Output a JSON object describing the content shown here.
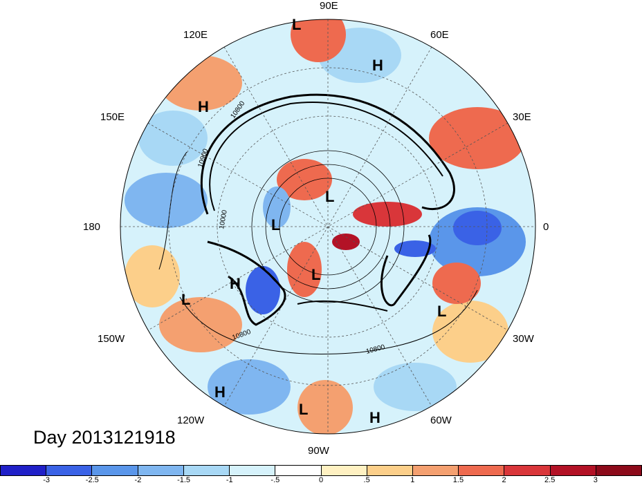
{
  "map": {
    "projection": "polar stereographic",
    "longitude_labels": [
      "90E",
      "60E",
      "30E",
      "0",
      "30W",
      "60W",
      "90W",
      "120W",
      "150W",
      "180",
      "150E",
      "120E"
    ],
    "pressure_centers": [
      {
        "label": "L"
      },
      {
        "label": "H"
      },
      {
        "label": "H"
      },
      {
        "label": "L"
      },
      {
        "label": "L"
      },
      {
        "label": "H"
      },
      {
        "label": "L"
      },
      {
        "label": "L"
      },
      {
        "label": "L"
      },
      {
        "label": "H"
      },
      {
        "label": "L"
      },
      {
        "label": "H"
      }
    ],
    "contour_labels": [
      "10900",
      "10800",
      "10000",
      "10800",
      "10800"
    ]
  },
  "title": "Day 2013121918",
  "colorbar": {
    "ticks": [
      "-3",
      "-2.5",
      "-2",
      "-1.5",
      "-1",
      "-.5",
      "0",
      ".5",
      "1",
      "1.5",
      "2",
      "2.5",
      "3"
    ],
    "colors": [
      "#2020c8",
      "#3a62e6",
      "#5a96ea",
      "#7fb6f0",
      "#a8d8f5",
      "#d6f2fb",
      "#ffffff",
      "#fff1c2",
      "#fccf8a",
      "#f4a070",
      "#ee6a4f",
      "#d9363a",
      "#b31226",
      "#8c0a1a"
    ]
  }
}
